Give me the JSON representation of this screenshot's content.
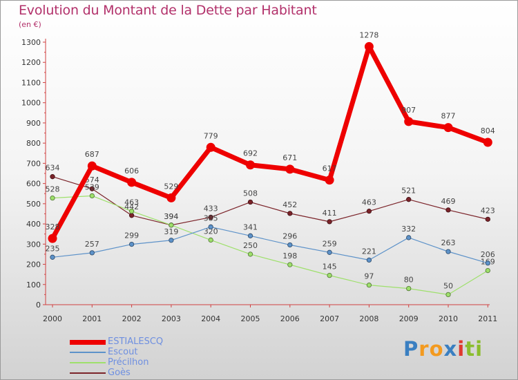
{
  "title": "Evolution du Montant de la Dette par Habitant",
  "subtitle": "(en €)",
  "logo": {
    "text": "Proxiti",
    "letters": [
      "P",
      "r",
      "o",
      "x",
      "i",
      "t",
      "i"
    ],
    "colors": [
      "#3a7fc1",
      "#f39a1f",
      "#f39a1f",
      "#3a7fc1",
      "#e0392f",
      "#8bbd2e",
      "#8bbd2e"
    ]
  },
  "chart_data": {
    "type": "line",
    "title": "Evolution du Montant de la Dette par Habitant",
    "ylabel": "(en €)",
    "xlabel": "",
    "ylim": [
      0,
      1300
    ],
    "yticks": [
      0,
      100,
      200,
      300,
      400,
      500,
      600,
      700,
      800,
      900,
      1000,
      1100,
      1200,
      1300
    ],
    "categories": [
      "2000",
      "2001",
      "2002",
      "2003",
      "2004",
      "2005",
      "2006",
      "2007",
      "2008",
      "2009",
      "2010",
      "2011"
    ],
    "grid": false,
    "legend_position": "bottom-left",
    "series": [
      {
        "name": "Goès",
        "color": "#7b2329",
        "values": [
          634,
          574,
          442,
          394,
          433,
          508,
          452,
          411,
          463,
          521,
          469,
          423
        ]
      },
      {
        "name": "Précilhon",
        "color": "#9ee06b",
        "values": [
          528,
          539,
          463,
          394,
          320,
          250,
          198,
          145,
          97,
          80,
          50,
          169
        ]
      },
      {
        "name": "Escout",
        "color": "#5d92c9",
        "values": [
          235,
          257,
          299,
          319,
          385,
          341,
          296,
          259,
          221,
          332,
          263,
          206
        ]
      },
      {
        "name": "ESTIALESCQ",
        "color": "#ee0000",
        "values": [
          328,
          687,
          606,
          529,
          779,
          692,
          671,
          617,
          1278,
          907,
          877,
          804
        ]
      }
    ],
    "legend": [
      {
        "name": "ESTIALESCQ",
        "color": "#ee0000"
      },
      {
        "name": "Escout",
        "color": "#5d92c9"
      },
      {
        "name": "Précilhon",
        "color": "#9ee06b"
      },
      {
        "name": "Goès",
        "color": "#7b2329"
      }
    ]
  }
}
